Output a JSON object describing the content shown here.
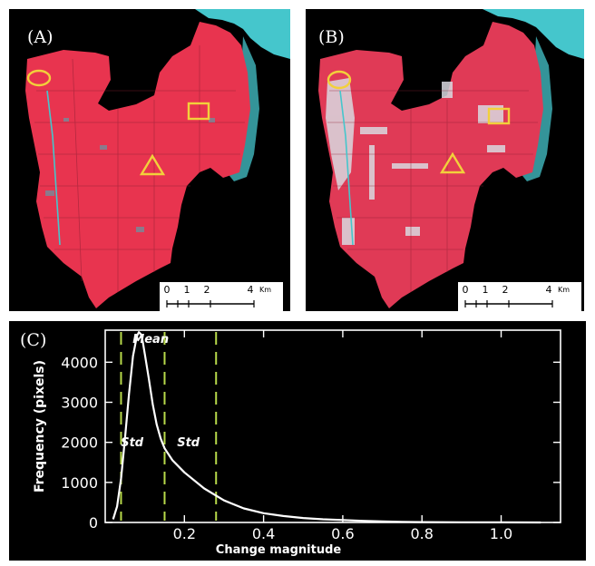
{
  "figure": {
    "panel_a": {
      "letter": "(A)",
      "scale_ticks": [
        "0",
        "1",
        "2",
        "4"
      ],
      "scale_unit": "Km",
      "marker_color": "#f2d03b"
    },
    "panel_b": {
      "letter": "(B)",
      "scale_ticks": [
        "0",
        "1",
        "2",
        "4"
      ],
      "scale_unit": "Km",
      "marker_color": "#f2d03b"
    },
    "panel_c": {
      "letter": "(C)"
    }
  },
  "colors": {
    "land": "#e8344f",
    "water": "#45c6cc",
    "urban": "#d9d9e0",
    "marker": "#f2d03b",
    "histogram_line": "#ffffff",
    "threshold_line": "#b7d94a"
  },
  "chart_data": {
    "type": "line",
    "xlabel": "Change magnitude",
    "ylabel": "Frequency (pixels)",
    "xlim": [
      0,
      1.15
    ],
    "ylim": [
      0,
      4800
    ],
    "x_ticks": [
      0.2,
      0.4,
      0.6,
      0.8,
      1.0
    ],
    "x_tick_labels": [
      "0.2",
      "0.4",
      "0.6",
      "0.8",
      "1.0"
    ],
    "y_ticks": [
      0,
      1000,
      2000,
      3000,
      4000
    ],
    "y_tick_labels": [
      "0",
      "1000",
      "2000",
      "3000",
      "4000"
    ],
    "grid": false,
    "series": [
      {
        "x": [
          0.02,
          0.03,
          0.04,
          0.05,
          0.06,
          0.07,
          0.08,
          0.085,
          0.09,
          0.095,
          0.1,
          0.11,
          0.12,
          0.13,
          0.14,
          0.15,
          0.17,
          0.2,
          0.25,
          0.3,
          0.35,
          0.4,
          0.45,
          0.5,
          0.55,
          0.6,
          0.65,
          0.7,
          0.75,
          0.8,
          0.9,
          1.0,
          1.1
        ],
        "values": [
          80,
          400,
          1100,
          2100,
          3200,
          4150,
          4650,
          4750,
          4700,
          4500,
          4200,
          3600,
          2950,
          2450,
          2100,
          1850,
          1550,
          1250,
          850,
          550,
          350,
          230,
          160,
          110,
          80,
          60,
          40,
          25,
          15,
          10,
          5,
          3,
          0
        ]
      }
    ],
    "vertical_lines": [
      0.04,
      0.15,
      0.28
    ],
    "annotations": [
      {
        "text": "Mean",
        "x": 0.115,
        "y": 4480
      },
      {
        "text": "Std",
        "x": 0.068,
        "y": 1900
      },
      {
        "text": "Std",
        "x": 0.21,
        "y": 1900
      }
    ]
  }
}
